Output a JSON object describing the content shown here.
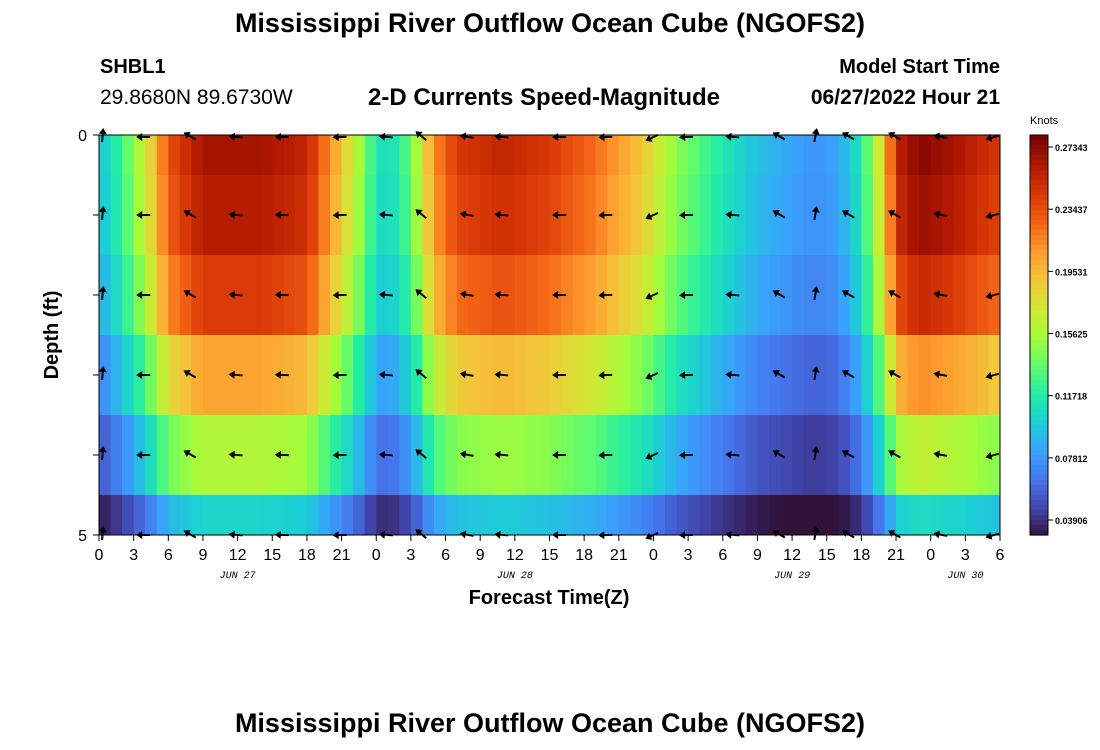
{
  "header": {
    "title": "Mississippi River Outflow Ocean Cube (NGOFS2)",
    "station_id": "SHBL1",
    "station_coords": "29.8680N  89.6730W",
    "plot_title": "2-D Currents Speed-Magnitude",
    "model_start_label": "Model Start Time",
    "model_start_value": "06/27/2022 Hour 21"
  },
  "footer": {
    "title": "Mississippi River Outflow Ocean Cube (NGOFS2)"
  },
  "chart_data": {
    "type": "heatmap",
    "title": "2-D Currents Speed-Magnitude",
    "xlabel": "Forecast Time(Z)",
    "ylabel": "Depth (ft)",
    "x_tick_labels": [
      "0",
      "3",
      "6",
      "9",
      "12",
      "15",
      "18",
      "21",
      "0",
      "3",
      "6",
      "9",
      "12",
      "15",
      "18",
      "21",
      "0",
      "3",
      "6",
      "9",
      "12",
      "15",
      "18",
      "21",
      "0",
      "3",
      "6"
    ],
    "date_labels": [
      "JUN 27",
      "JUN 28",
      "JUN 29",
      "JUN 30"
    ],
    "date_label_hours": [
      12,
      36,
      60,
      75
    ],
    "y_tick_labels": [
      "0",
      "5"
    ],
    "xlim_hours": [
      0,
      78
    ],
    "ylim_ft": [
      0,
      5
    ],
    "layer_depths_ft": [
      0,
      1,
      2,
      3,
      4,
      5
    ],
    "colorbar": {
      "unit": "Knots",
      "min": 0.039,
      "max": 0.2734,
      "tick_labels": [
        "0.27343",
        "0.23437",
        "0.19531",
        "0.15625",
        "0.11718",
        "0.07812",
        "0.03906"
      ],
      "colors": [
        "#30123b",
        "#4145ab",
        "#4675ed",
        "#39a2fc",
        "#1bcfd4",
        "#24eca6",
        "#61fc6c",
        "#a4fc3b",
        "#d1e834",
        "#f3c63a",
        "#fe9b2d",
        "#f36315",
        "#d93806",
        "#b11901",
        "#7a0402"
      ]
    },
    "speed_profile_hours": [
      0,
      2,
      4,
      6,
      9,
      14,
      18,
      20,
      22,
      24,
      25,
      27,
      29,
      31,
      35,
      39,
      43,
      47,
      50,
      54,
      57,
      60,
      62,
      64,
      66,
      68,
      69,
      71,
      74,
      78
    ],
    "speed_profile_surface_knots": [
      0.1,
      0.13,
      0.17,
      0.23,
      0.26,
      0.26,
      0.25,
      0.21,
      0.17,
      0.12,
      0.11,
      0.14,
      0.21,
      0.24,
      0.25,
      0.24,
      0.22,
      0.19,
      0.15,
      0.12,
      0.1,
      0.09,
      0.085,
      0.09,
      0.12,
      0.19,
      0.25,
      0.27,
      0.26,
      0.24
    ],
    "layer_factors": [
      1.0,
      0.98,
      0.92,
      0.78,
      0.62,
      0.42
    ],
    "arrow_hours": [
      0.3,
      4,
      8,
      12,
      16,
      21,
      25,
      28,
      32,
      35,
      40,
      44,
      48,
      51,
      55,
      59,
      62,
      65,
      69,
      73,
      77.5
    ],
    "arrow_directions_deg": [
      85,
      180,
      150,
      175,
      178,
      182,
      175,
      140,
      170,
      175,
      180,
      182,
      205,
      182,
      175,
      150,
      80,
      150,
      150,
      170,
      195
    ]
  }
}
